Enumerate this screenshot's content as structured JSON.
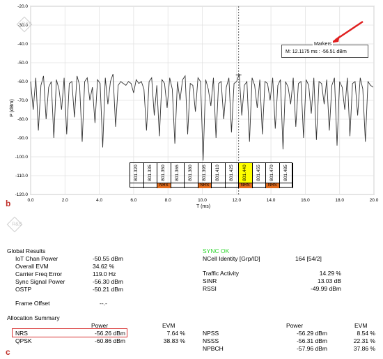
{
  "panel_b": {
    "letter": "b",
    "marker_box": {
      "title": "Markers",
      "line": "M:   12.1175 ms  :   -56.51 dBm"
    },
    "table": {
      "freqs": [
        "801.320",
        "801.335",
        "801.350",
        "801.365",
        "801.380",
        "801.395",
        "801.410",
        "801.425",
        "801.440",
        "801.455",
        "801.470",
        "801.485"
      ],
      "nrs_label": "NRS",
      "nrs_cells": [
        2,
        5,
        8,
        10
      ],
      "highlight_col": 8,
      "colors": {
        "nrs": "#e06a1c",
        "highlight": "#ffff00"
      }
    }
  },
  "chart_data": {
    "type": "line",
    "ylabel": "P (dBm)",
    "xlabel": "T (ms)",
    "xlim": [
      0,
      20
    ],
    "ylim": [
      -120,
      -20
    ],
    "x_ticks": [
      "0.0",
      "2.0",
      "4.0",
      "6.0",
      "8.0",
      "10.0",
      "12.0",
      "14.0",
      "16.0",
      "18.0",
      "20.0"
    ],
    "y_ticks": [
      "-20.0",
      "-30.0",
      "-40.0",
      "-50.0",
      "-60.0",
      "-70.0",
      "-80.0",
      "-90.0",
      "-100.0",
      "-110.0",
      "-120.0"
    ],
    "grid": true,
    "marker_x": 12.1175,
    "marker_y": -56.51,
    "series": [
      {
        "x": [
          0.0,
          0.15,
          0.3,
          0.45,
          0.6,
          0.75,
          0.9,
          1.05,
          1.2,
          1.35,
          1.5,
          1.65,
          1.8,
          1.95,
          2.1,
          2.25,
          2.4,
          2.55,
          2.7,
          2.85,
          3.0,
          3.15,
          3.3,
          3.45,
          3.6,
          3.75,
          3.9,
          4.05,
          4.2,
          4.35,
          4.5,
          4.65,
          4.8,
          4.95,
          5.1,
          5.25,
          5.4,
          5.55,
          5.7,
          5.85,
          6.0,
          6.15,
          6.3,
          6.45,
          6.6,
          6.75,
          6.9,
          7.05,
          7.2,
          7.35,
          7.5,
          7.65,
          7.8,
          7.95,
          8.1,
          8.25,
          8.4,
          8.55,
          8.7,
          8.85,
          9.0,
          9.15,
          9.3,
          9.45,
          9.6,
          9.75,
          9.9,
          10.05,
          10.2,
          10.35,
          10.5,
          10.65,
          10.8,
          10.95,
          11.1,
          11.25,
          11.4,
          11.55,
          11.7,
          11.85,
          12.0,
          12.15,
          12.3,
          12.45,
          12.6,
          12.75,
          12.9,
          13.05,
          13.2,
          13.35,
          13.5,
          13.65,
          13.8,
          13.95,
          14.1,
          14.25,
          14.4,
          14.55,
          14.7,
          14.85,
          15.0,
          15.15,
          15.3,
          15.45,
          15.6,
          15.75,
          15.9,
          16.05,
          16.2,
          16.35,
          16.5,
          16.65,
          16.8,
          16.95,
          17.1,
          17.25,
          17.4,
          17.55,
          17.7,
          17.85,
          18.0,
          18.15,
          18.3,
          18.45,
          18.6,
          18.75,
          18.9,
          19.05,
          19.2,
          19.35,
          19.5,
          19.65,
          19.8,
          19.95
        ],
        "y": [
          -60,
          -75,
          -58,
          -86,
          -62,
          -57,
          -80,
          -63,
          -60,
          -90,
          -59,
          -64,
          -75,
          -58,
          -88,
          -61,
          -60,
          -79,
          -57,
          -62,
          -92,
          -60,
          -58,
          -70,
          -63,
          -82,
          -59,
          -61,
          -95,
          -58,
          -72,
          -60,
          -56,
          -84,
          -62,
          -60,
          -61,
          -62,
          -60,
          -61,
          -66,
          -59,
          -61,
          -60,
          -64,
          -86,
          -60,
          -58,
          -78,
          -62,
          -89,
          -59,
          -61,
          -74,
          -58,
          -64,
          -93,
          -60,
          -70,
          -59,
          -57,
          -88,
          -61,
          -62,
          -76,
          -58,
          -60,
          -102,
          -59,
          -64,
          -73,
          -58,
          -90,
          -61,
          -60,
          -80,
          -63,
          -58,
          -87,
          -61,
          -60,
          -56,
          -78,
          -62,
          -60,
          -92,
          -58,
          -62,
          -74,
          -59,
          -88,
          -60,
          -61,
          -70,
          -58,
          -85,
          -62,
          -59,
          -96,
          -60,
          -63,
          -72,
          -58,
          -84,
          -61,
          -60,
          -90,
          -59,
          -62,
          -77,
          -58,
          -91,
          -60,
          -61,
          -72,
          -59,
          -86,
          -62,
          -58,
          -94,
          -60,
          -63,
          -75,
          -58,
          -89,
          -61,
          -60,
          -78,
          -58,
          -64,
          -92,
          -60,
          -62,
          -63
        ]
      }
    ]
  },
  "panel_c": {
    "letter": "c",
    "global_results_title": "Global Results",
    "sync_status": "SYNC OK",
    "left_rows": [
      {
        "label": "IoT Chan Power",
        "value": "-50.55 dBm"
      },
      {
        "label": "Overall EVM",
        "value": "34.62 %"
      },
      {
        "label": "Carrier Freq Error",
        "value": "119.0 Hz"
      },
      {
        "label": "Sync Signal Power",
        "value": "-56.30 dBm"
      },
      {
        "label": "OSTP",
        "value": "-50.21 dBm"
      }
    ],
    "ncell": {
      "label": "NCell Identity [Grp/ID]",
      "value": "164 [54/2]"
    },
    "right_rows": [
      {
        "label": "Traffic Activity",
        "value": "14.29 %"
      },
      {
        "label": "SINR",
        "value": "13.03 dB"
      },
      {
        "label": "RSSI",
        "value": "-49.99 dBm"
      }
    ],
    "frame_offset": {
      "label": "Frame Offset",
      "value": "--.-"
    },
    "allocation_title": "Allocation Summary",
    "col_power": "Power",
    "col_evm": "EVM",
    "alloc_left": [
      {
        "label": "NRS",
        "power": "-56.26 dBm",
        "evm": "7.64 %"
      },
      {
        "label": "QPSK",
        "power": "-60.86 dBm",
        "evm": "38.83 %"
      }
    ],
    "alloc_right": [
      {
        "label": "NPSS",
        "power": "-56.29 dBm",
        "evm": "8.54 %"
      },
      {
        "label": "NSSS",
        "power": "-56.31 dBm",
        "evm": "22.31 %"
      },
      {
        "label": "NPBCH",
        "power": "-57.96 dBm",
        "evm": "37.86 %"
      }
    ],
    "highlight_color": "#d72e2e"
  }
}
